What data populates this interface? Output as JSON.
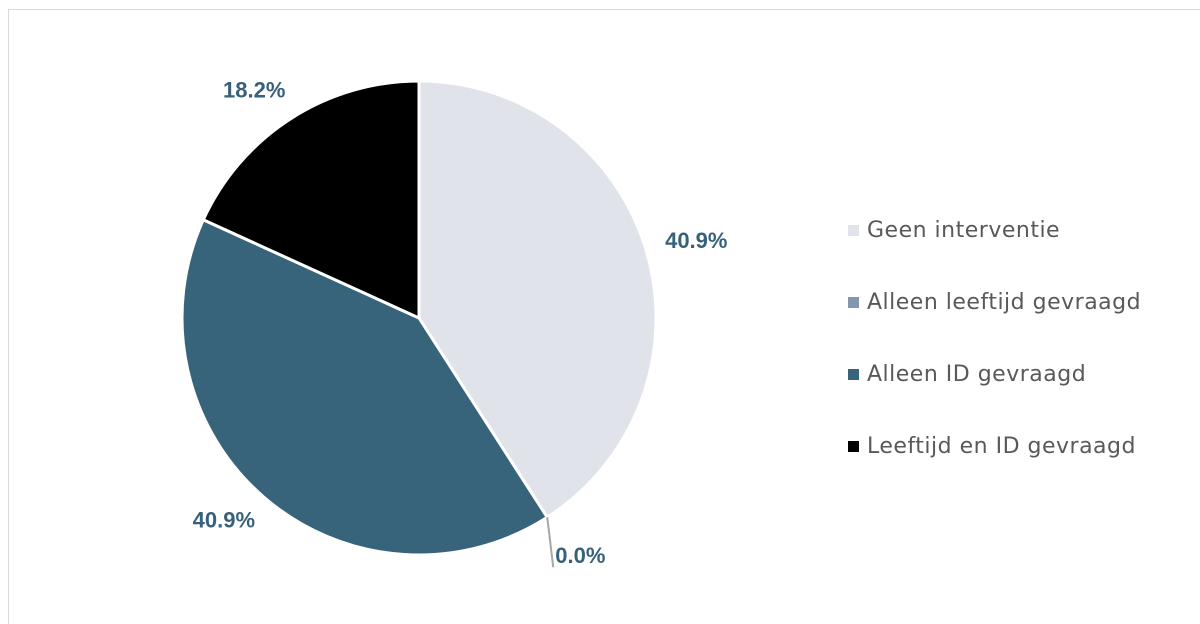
{
  "chart_data": {
    "type": "pie",
    "categories": [
      "Geen interventie",
      "Alleen leeftijd gevraagd",
      "Alleen ID gevraagd",
      "Leeftijd en ID gevraagd"
    ],
    "values": [
      40.9,
      0.0,
      40.9,
      18.2
    ],
    "value_labels": [
      "40.9%",
      "0.0%",
      "40.9%",
      "18.2%"
    ],
    "colors": [
      "#e0e3ea",
      "#8496ae",
      "#37637b",
      "#000000"
    ],
    "legend_position": "right",
    "title": ""
  }
}
